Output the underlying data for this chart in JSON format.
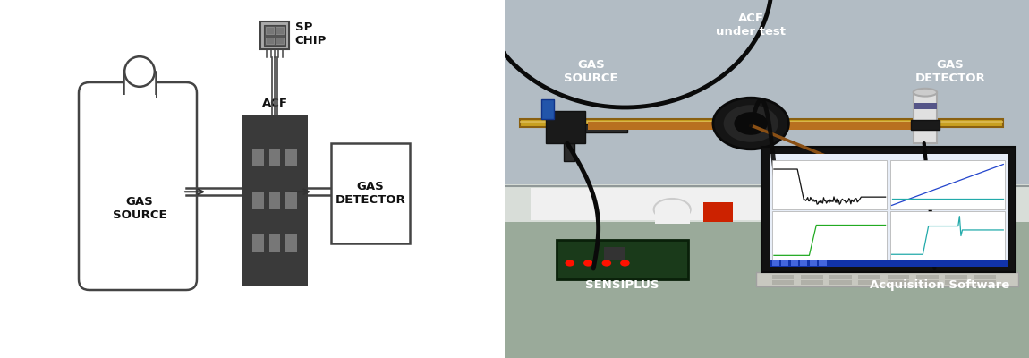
{
  "bg_color": "#ffffff",
  "diagram": {
    "gas_source_label": "GAS\nSOURCE",
    "acf_label": "ACF",
    "sp_chip_label": "SP\nCHIP",
    "gas_detector_label": "GAS\nDETECTOR",
    "acf_color": "#3a3a3a",
    "acf_hole_color": "#777777",
    "border_color": "#444444",
    "arrow_color": "#333333",
    "text_color": "#111111",
    "line_color": "#444444"
  },
  "photo": {
    "acf_under_test_label": "ACF\nunder test",
    "gas_source_label": "GAS\nSOURCE",
    "gas_detector_label": "GAS\nDETECTOR",
    "sensiplus_label": "SENSIPLUS",
    "acq_software_label": "Acquisition Software",
    "label_color": "#ffffff",
    "wall_color": "#b8c0c8",
    "lower_bg_color": "#9aaa9a",
    "bench_color": "#d0d4d0"
  }
}
